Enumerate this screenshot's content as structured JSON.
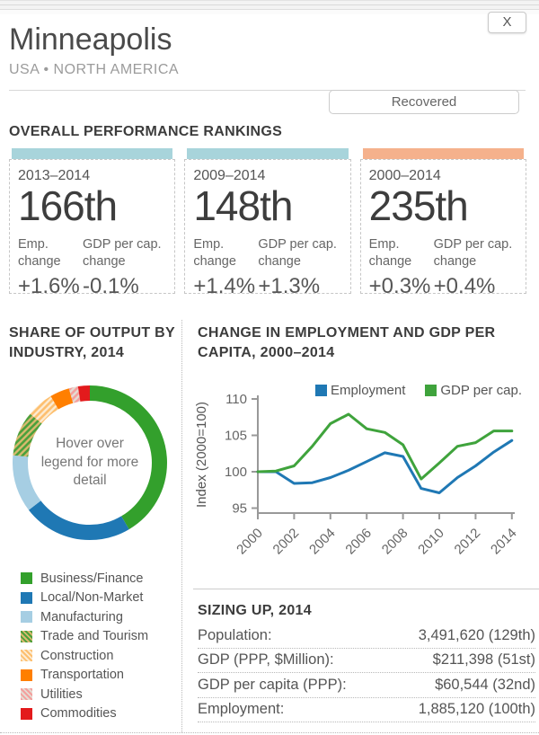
{
  "window": {
    "close_label": "X"
  },
  "header": {
    "title": "Minneapolis",
    "subtitle": "USA • NORTH AMERICA",
    "status_label": "Recovered"
  },
  "rankings": {
    "heading": "OVERALL PERFORMANCE RANKINGS",
    "cards": [
      {
        "period": "2013–2014",
        "rank": "166th",
        "emp_label": "Emp. change",
        "gdp_label": "GDP per cap. change",
        "emp_change": "+1.6%",
        "gdp_change": "-0.1%",
        "bar_color": "#a8d4db"
      },
      {
        "period": "2009–2014",
        "rank": "148th",
        "emp_label": "Emp. change",
        "gdp_label": "GDP per cap. change",
        "emp_change": "+1.4%",
        "gdp_change": "+1.3%",
        "bar_color": "#a8d4db"
      },
      {
        "period": "2000–2014",
        "rank": "235th",
        "emp_label": "Emp. change",
        "gdp_label": "GDP per cap. change",
        "emp_change": "+0.3%",
        "gdp_change": "+0.4%",
        "bar_color": "#f5b18c"
      }
    ]
  },
  "industry": {
    "heading": "SHARE OF OUTPUT BY INDUSTRY, 2014",
    "center_text": "Hover over legend for more detail"
  },
  "employment_chart": {
    "heading": "CHANGE IN EMPLOYMENT AND GDP PER CAPITA, 2000–2014"
  },
  "sizing": {
    "heading": "SIZING UP, 2014",
    "rows": [
      {
        "label": "Population:",
        "value": "3,491,620 (129th)"
      },
      {
        "label": "GDP (PPP, $Million):",
        "value": "$211,398 (51st)"
      },
      {
        "label": "GDP per capita (PPP):",
        "value": "$60,544 (32nd)"
      },
      {
        "label": "Employment:",
        "value": "1,885,120 (100th)"
      }
    ]
  },
  "chart_data": [
    {
      "type": "pie",
      "donut": true,
      "title": "SHARE OF OUTPUT BY INDUSTRY, 2014",
      "slices": [
        {
          "label": "Business/Finance",
          "value": 41.5,
          "color": "#33a02c",
          "pattern": "solid"
        },
        {
          "label": "Local/Non-Market",
          "value": 23.0,
          "color": "#1f78b4",
          "pattern": "solid"
        },
        {
          "label": "Manufacturing",
          "value": 12.0,
          "color": "#a6cee3",
          "pattern": "solid"
        },
        {
          "label": "Trade and Tourism",
          "value": 9.4,
          "color": "#4ba03c",
          "pattern": "hatch",
          "pattern_color": "#d9b96e"
        },
        {
          "label": "Construction",
          "value": 5.6,
          "color": "#fdbf6f",
          "pattern": "hatch",
          "pattern_color": "#fcebd2"
        },
        {
          "label": "Transportation",
          "value": 4.1,
          "color": "#ff7f00",
          "pattern": "solid"
        },
        {
          "label": "Utilities",
          "value": 1.9,
          "color": "#f49f9d",
          "pattern": "hatch",
          "pattern_color": "#e4dcd3"
        },
        {
          "label": "Commodities",
          "value": 2.5,
          "color": "#e31a1c",
          "pattern": "solid"
        }
      ]
    },
    {
      "type": "line",
      "title": "CHANGE IN EMPLOYMENT AND GDP PER CAPITA, 2000–2014",
      "xlabel": "",
      "ylabel": "Index (2000=100)",
      "x": [
        2000,
        2001,
        2002,
        2003,
        2004,
        2005,
        2006,
        2007,
        2008,
        2009,
        2010,
        2011,
        2012,
        2013,
        2014
      ],
      "xticks": [
        2000,
        2002,
        2004,
        2006,
        2008,
        2010,
        2012,
        2014
      ],
      "yticks": [
        95,
        100,
        105,
        110
      ],
      "ylim": [
        93.5,
        111
      ],
      "legend_position": "top",
      "series": [
        {
          "name": "Employment",
          "color": "#1f78b4",
          "values": [
            100,
            100,
            98.4,
            98.5,
            99.2,
            100.2,
            101.4,
            102.6,
            102.1,
            97.7,
            97.1,
            99.2,
            100.8,
            102.7,
            104.3
          ]
        },
        {
          "name": "GDP per cap.",
          "color": "#3fa33c",
          "values": [
            100,
            100.1,
            100.8,
            103.5,
            106.6,
            107.9,
            105.9,
            105.4,
            103.7,
            99.0,
            101.2,
            103.5,
            104.0,
            105.6,
            105.6
          ]
        }
      ]
    }
  ]
}
